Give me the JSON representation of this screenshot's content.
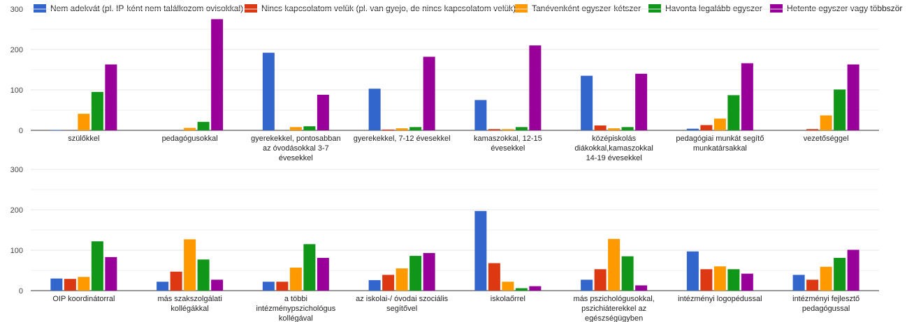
{
  "chart_data": {
    "type": "bar",
    "legend_position": "top",
    "grid": true,
    "ylim": [
      0,
      300
    ],
    "yticks": [
      "0",
      "100",
      "200",
      "300"
    ],
    "series": [
      {
        "name": "Nem adekvát (pl. IP-ként nem találkozom ovisokkal)",
        "color": "#3366cc"
      },
      {
        "name": "Nincs kapcsolatom velük (pl. van gyejo, de nincs kapcsolatom velük)",
        "color": "#dc3912"
      },
      {
        "name": "Tanévenként egyszer-kétszer",
        "color": "#ff9900"
      },
      {
        "name": "Havonta legalább egyszer",
        "color": "#109618"
      },
      {
        "name": "Hetente egyszer vagy többször",
        "color": "#990099"
      }
    ],
    "panels": [
      {
        "categories": [
          {
            "lines": [
              "szülőkkel"
            ]
          },
          {
            "lines": [
              "pedagógusokkal"
            ]
          },
          {
            "lines": [
              "gyerekekkel, pontosabban",
              "az óvodásokkal 3-7",
              "évesekkel"
            ]
          },
          {
            "lines": [
              "gyerekekkel, 7-12 évesekkel"
            ]
          },
          {
            "lines": [
              "kamaszokkal, 12-15",
              "évesekkel"
            ]
          },
          {
            "lines": [
              "középiskolás",
              "diákokkal,kamaszokkal",
              "14-19 évesekkel"
            ]
          },
          {
            "lines": [
              "pedagógiai munkát segítő",
              "munkatársakkal"
            ]
          },
          {
            "lines": [
              "vezetőséggel"
            ]
          }
        ],
        "values": [
          [
            1,
            0,
            41,
            95,
            163
          ],
          [
            0,
            0,
            6,
            21,
            275
          ],
          [
            192,
            0,
            8,
            10,
            88
          ],
          [
            103,
            2,
            5,
            8,
            182
          ],
          [
            75,
            3,
            3,
            8,
            210
          ],
          [
            135,
            12,
            5,
            8,
            140
          ],
          [
            4,
            13,
            29,
            87,
            166
          ],
          [
            0,
            3,
            37,
            101,
            163
          ]
        ]
      },
      {
        "categories": [
          {
            "lines": [
              "OIP koordinátorral"
            ]
          },
          {
            "lines": [
              "más szakszolgálati",
              "kollégákkal"
            ]
          },
          {
            "lines": [
              "a többi",
              "intézménypszichológus",
              "kollégával"
            ]
          },
          {
            "lines": [
              "az iskolai-/ óvodai szociális",
              "segítővel"
            ]
          },
          {
            "lines": [
              "iskolaőrrel"
            ]
          },
          {
            "lines": [
              "más pszichológusokkal,",
              "pszichiáterekkel az",
              "egészségügyben"
            ]
          },
          {
            "lines": [
              "intézményi logopédussal"
            ]
          },
          {
            "lines": [
              "intézményi fejlesztő",
              "pedagógussal"
            ]
          }
        ],
        "values": [
          [
            30,
            29,
            34,
            122,
            83
          ],
          [
            22,
            47,
            127,
            77,
            27
          ],
          [
            22,
            22,
            57,
            115,
            81
          ],
          [
            26,
            39,
            55,
            86,
            93
          ],
          [
            197,
            68,
            22,
            6,
            11
          ],
          [
            27,
            53,
            128,
            85,
            13
          ],
          [
            97,
            53,
            60,
            53,
            42
          ],
          [
            39,
            27,
            59,
            81,
            101
          ]
        ]
      }
    ]
  }
}
